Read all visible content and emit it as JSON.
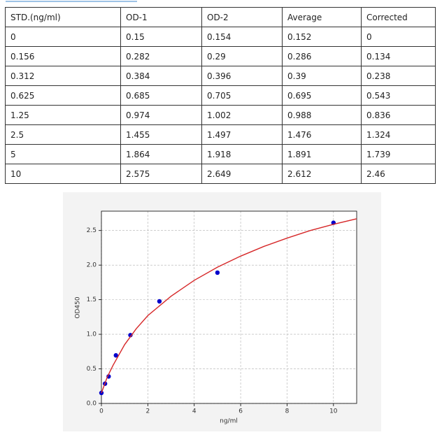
{
  "table": {
    "header": [
      "STD.(ng/ml)",
      "OD-1",
      "OD-2",
      "Average",
      "Corrected"
    ],
    "rows": [
      [
        "0",
        "0.15",
        "0.154",
        "0.152",
        "0"
      ],
      [
        "0.156",
        "0.282",
        "0.29",
        "0.286",
        "0.134"
      ],
      [
        "0.312",
        "0.384",
        "0.396",
        "0.39",
        "0.238"
      ],
      [
        "0.625",
        "0.685",
        "0.705",
        "0.695",
        "0.543"
      ],
      [
        "1.25",
        "0.974",
        "1.002",
        "0.988",
        "0.836"
      ],
      [
        "2.5",
        "1.455",
        "1.497",
        "1.476",
        "1.324"
      ],
      [
        "5",
        "1.864",
        "1.918",
        "1.891",
        "1.739"
      ],
      [
        "10",
        "2.575",
        "2.649",
        "2.612",
        "2.46"
      ]
    ]
  },
  "chart_data": {
    "type": "scatter",
    "xlabel": "ng/ml",
    "ylabel": "OD450",
    "xlim": [
      0,
      11
    ],
    "xticks": [
      0,
      2,
      4,
      6,
      8,
      10
    ],
    "ylim": [
      0,
      2.78
    ],
    "yticks": [
      {
        "value": 0,
        "label": "0.0"
      },
      0.5,
      {
        "value": 1,
        "label": "1.0"
      },
      1.5,
      {
        "value": 2,
        "label": "2.0"
      },
      2.5
    ],
    "grid": true,
    "series": [
      {
        "type": "scatter",
        "color": "#0000cc",
        "x": [
          0,
          0.156,
          0.312,
          0.625,
          1.25,
          2.5,
          5,
          10
        ],
        "values": [
          0.152,
          0.286,
          0.39,
          0.695,
          0.988,
          1.476,
          1.891,
          2.612
        ]
      },
      {
        "type": "line",
        "color": "#d62728",
        "x": [
          0,
          0.25,
          0.5,
          1,
          1.5,
          2,
          3,
          4,
          5,
          6,
          7,
          8,
          9,
          10,
          11
        ],
        "values": [
          0.15,
          0.38,
          0.55,
          0.85,
          1.08,
          1.27,
          1.55,
          1.78,
          1.97,
          2.13,
          2.27,
          2.39,
          2.5,
          2.59,
          2.67
        ]
      }
    ]
  }
}
